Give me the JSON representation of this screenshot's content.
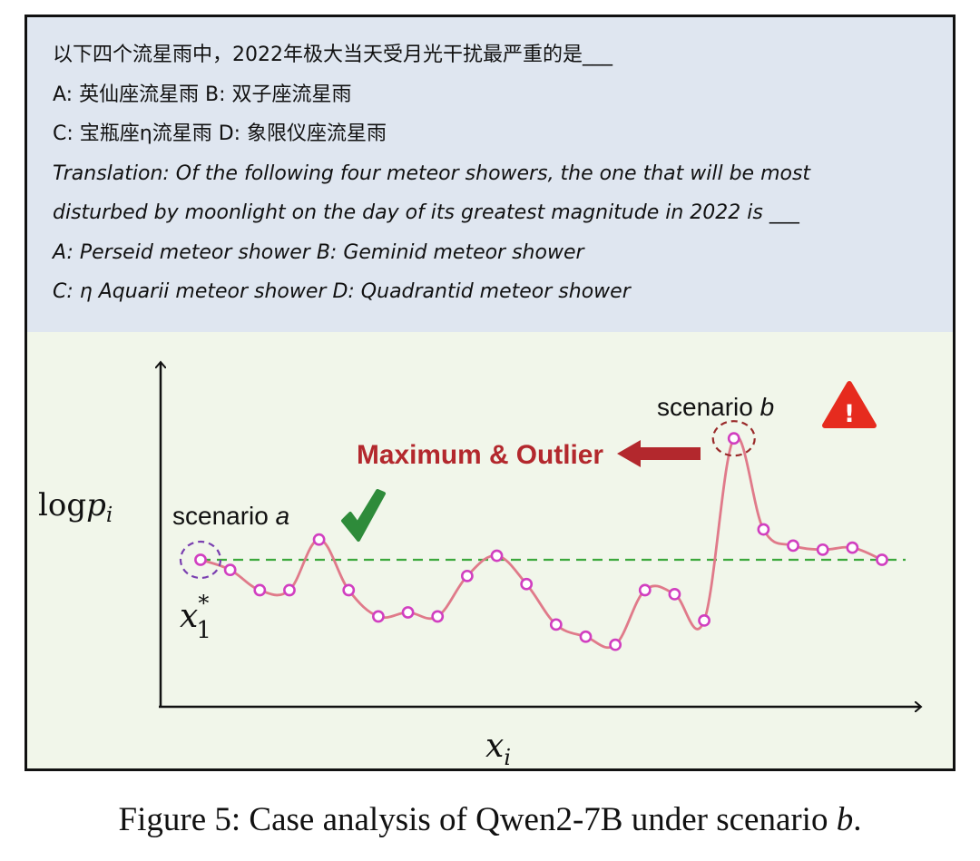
{
  "question": {
    "zh_question": "以下四个流星雨中，2022年极大当天受月光干扰最严重的是___",
    "zh_options_1": "A: 英仙座流星雨   B: 双子座流星雨",
    "zh_options_2": "C: 宝瓶座η流星雨   D: 象限仪座流星雨",
    "en_line_1": "Translation:  Of the following four meteor showers, the one that will be most",
    "en_line_2": "disturbed by moonlight on the day of its greatest magnitude in 2022 is ___",
    "en_options_1": "A: Perseid meteor shower    B: Geminid meteor shower",
    "en_options_2": "C: η Aquarii meteor shower   D: Quadrantid meteor shower"
  },
  "plot": {
    "ylabel_base": "log",
    "ylabel_var": "p",
    "ylabel_sub": "i",
    "xlabel_var": "x",
    "xlabel_sub": "i",
    "point_label_var": "x",
    "point_label_sup": "*",
    "point_label_sub": "1",
    "scenario_a_prefix": "scenario ",
    "scenario_a_letter": "a",
    "scenario_b_prefix": "scenario ",
    "scenario_b_letter": "b",
    "outlier_label": "Maximum & Outlier",
    "warning_glyph": "!"
  },
  "colors": {
    "curve": "#e07a8a",
    "marker": "#d13fc0",
    "baseline": "#3ca83c",
    "check": "#2e8b3a",
    "warning": "#e62b1e",
    "outlier_text": "#b3282d",
    "arrow": "#b3282d",
    "highlight_a": "#7a3fb0",
    "highlight_b": "#9a2a2a"
  },
  "icons": {
    "check": "check-icon",
    "warning": "warning-triangle-icon",
    "arrow": "left-arrow-icon"
  },
  "chart_data": {
    "type": "line",
    "y_values_relative_to_x1": [
      0,
      -0.5,
      -1.5,
      -1.5,
      1.0,
      -1.5,
      -2.8,
      -2.6,
      -2.8,
      -0.8,
      0.2,
      -1.2,
      -3.2,
      -3.8,
      -4.2,
      -1.5,
      -1.7,
      -3.0,
      6.0,
      1.5,
      0.7,
      0.5,
      0.6,
      0
    ],
    "baseline_value": 0,
    "outlier_index": 18,
    "reference_index": 0
  },
  "caption": {
    "prefix": "Figure 5: Case analysis of Qwen2-7B under scenario ",
    "letter": "b",
    "suffix": "."
  }
}
